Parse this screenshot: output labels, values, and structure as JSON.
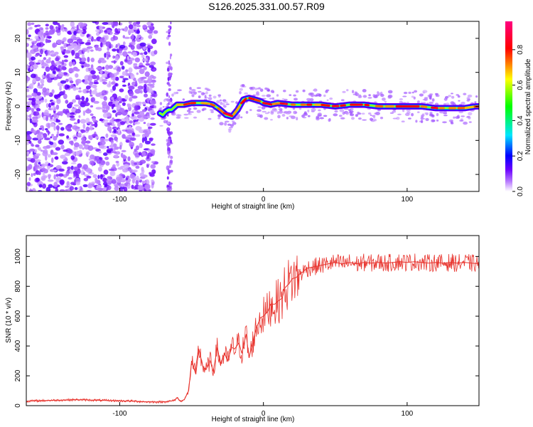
{
  "title": "S126.2025.331.00.57.R09",
  "chart_data": [
    {
      "type": "heatmap",
      "name": "spectrogram",
      "xlabel": "Height of straight line (km)",
      "ylabel": "Frequency (Hz)",
      "xlim": [
        -165,
        150
      ],
      "ylim": [
        -25,
        25
      ],
      "xticks": [
        -100,
        0,
        100
      ],
      "yticks": [
        -20,
        -10,
        0,
        10,
        20
      ],
      "colorbar": {
        "label": "Normalized spectral amplitude",
        "range": [
          0,
          0.96
        ],
        "ticks": [
          0.0,
          0.2,
          0.4,
          0.6,
          0.8
        ]
      },
      "ridge_x": [
        -72,
        -70,
        -68,
        -66,
        -64,
        -60,
        -55,
        -50,
        -45,
        -40,
        -35,
        -30,
        -26,
        -22,
        -18,
        -14,
        -10,
        -6,
        -2,
        0,
        5,
        10,
        20,
        30,
        40,
        50,
        60,
        70,
        80,
        90,
        100,
        110,
        120,
        130,
        140,
        148
      ],
      "ridge_y": [
        -2,
        -2.5,
        -1.5,
        -1,
        -1,
        0.5,
        0.5,
        1,
        1,
        1,
        0.5,
        -1,
        -2.5,
        -3,
        -1,
        2,
        2.5,
        2,
        1.5,
        1,
        0.5,
        1,
        0.5,
        0.5,
        0.5,
        0,
        0.5,
        0.5,
        0,
        0,
        0,
        0,
        -0.5,
        -0.5,
        -0.5,
        0
      ]
    },
    {
      "type": "line",
      "name": "snr",
      "xlabel": "Height of straight line (km)",
      "ylabel": "SNR (10 * v/v)",
      "xlim": [
        -165,
        150
      ],
      "ylim": [
        0,
        1140
      ],
      "xticks": [
        -100,
        0,
        100
      ],
      "yticks": [
        0,
        200,
        400,
        600,
        800,
        1000
      ],
      "color": "#e8332d",
      "x": [
        -165,
        -150,
        -130,
        -110,
        -90,
        -80,
        -70,
        -65,
        -62,
        -60,
        -58,
        -55,
        -52,
        -50,
        -47,
        -45,
        -42,
        -40,
        -37,
        -35,
        -32,
        -30,
        -27,
        -25,
        -22,
        -20,
        -17,
        -15,
        -12,
        -10,
        -7,
        -5,
        -2,
        0,
        3,
        5,
        8,
        10,
        13,
        15,
        18,
        20,
        23,
        25,
        28,
        30,
        35,
        40,
        45,
        50,
        55,
        60,
        65,
        70,
        75,
        80,
        85,
        90,
        95,
        100,
        105,
        110,
        115,
        120,
        125,
        130,
        135,
        140,
        145,
        150
      ],
      "values": [
        30,
        35,
        40,
        35,
        30,
        25,
        25,
        30,
        35,
        55,
        30,
        40,
        100,
        300,
        210,
        380,
        260,
        240,
        300,
        230,
        390,
        280,
        350,
        300,
        390,
        380,
        420,
        350,
        480,
        320,
        440,
        520,
        590,
        600,
        630,
        680,
        680,
        700,
        720,
        790,
        820,
        850,
        860,
        880,
        900,
        920,
        930,
        940,
        950,
        960,
        950,
        960,
        950,
        960,
        955,
        960,
        955,
        960,
        965,
        960,
        965,
        960,
        955,
        960,
        955,
        960,
        955,
        960,
        955,
        950
      ]
    }
  ]
}
